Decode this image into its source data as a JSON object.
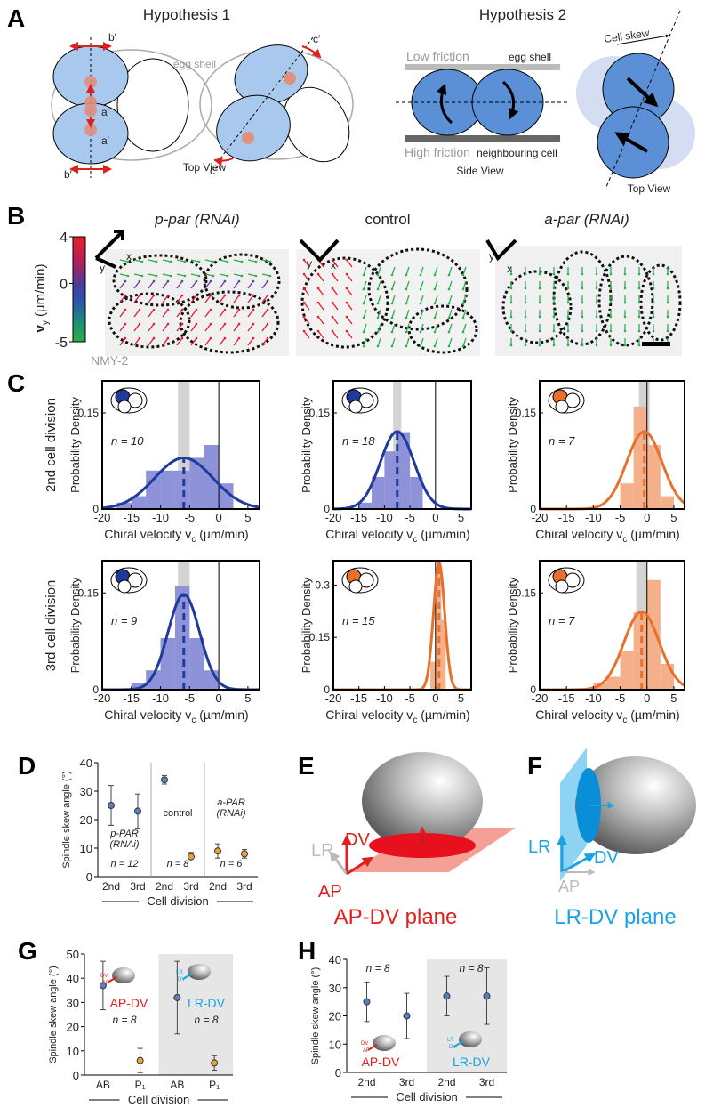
{
  "panel_a": {
    "letter": "A",
    "h1_title": "Hypothesis 1",
    "h1_labels": {
      "b_top": "b′",
      "a_top": "a′",
      "a_bottom": "a′",
      "b_bottom": "b′",
      "egg_shell": "egg shell",
      "c_top": "c′",
      "c_bottom": "c′"
    },
    "h1_view": "Top View",
    "h2_title": "Hypothesis 2",
    "h2_labels": {
      "low": "Low friction",
      "egg_shell": "egg shell",
      "high": "High friction",
      "neighbour": "neighbouring cell",
      "side_view": "Side View",
      "cell_skew": "Cell skew",
      "top_view": "Top View"
    }
  },
  "panel_b": {
    "letter": "B",
    "colorbar": {
      "ticks": [
        4,
        0,
        -5
      ],
      "lim": [
        -5,
        4
      ],
      "label": "v",
      "label_sub": "y",
      "unit": " (µm/min)"
    },
    "stain": "NMY-2",
    "titles": [
      "p-par (RNAi)",
      "control",
      "a-par (RNAi)"
    ],
    "axis_labels": [
      "y",
      "x"
    ]
  },
  "panel_c": {
    "letter": "C",
    "row_labels": [
      "2nd cell division",
      "3rd cell division"
    ],
    "charts": [
      {
        "type": "histogram",
        "ylabel": "Probability Density",
        "xlabel": "Chiral velocity  v",
        "xlabel_sub": "c",
        "xlabel_unit": " (µm/min)",
        "n_label": "n = 10",
        "color": "#1f3a9a",
        "bar_color": "#8e92d9",
        "xlim": [
          -20,
          7
        ],
        "xticks": [
          -20,
          -15,
          -10,
          -5,
          0,
          5
        ],
        "ylim": [
          0,
          0.2
        ],
        "yticks": [
          0,
          0.15
        ],
        "bins": [
          -17.5,
          -15,
          -12.5,
          -10,
          -7.5,
          -5,
          -2.5,
          0,
          2.5
        ],
        "counts": [
          0.01,
          0.02,
          0.06,
          0.06,
          0.06,
          0.08,
          0.1,
          0.04
        ],
        "fit_mean": -6,
        "fit_sd": 5,
        "mean_band": [
          -7,
          -5
        ],
        "reference_x": 0
      },
      {
        "type": "histogram",
        "ylabel": "Probability Density",
        "xlabel": "Chiral velocity  v",
        "xlabel_sub": "c",
        "xlabel_unit": " (µm/min)",
        "n_label": "n = 18",
        "color": "#1f3a9a",
        "bar_color": "#8e92d9",
        "xlim": [
          -20,
          7
        ],
        "xticks": [
          -20,
          -15,
          -10,
          -5,
          0,
          5
        ],
        "ylim": [
          0,
          0.2
        ],
        "yticks": [
          0,
          0.15
        ],
        "bins": [
          -15,
          -12.5,
          -10,
          -7.5,
          -5,
          -2.5
        ],
        "counts": [
          0.01,
          0.05,
          0.09,
          0.12,
          0.05
        ],
        "fit_mean": -7.5,
        "fit_sd": 3.3,
        "mean_band": [
          -8.3,
          -6.7
        ],
        "reference_x": 0
      },
      {
        "type": "histogram",
        "ylabel": "Probability Density",
        "xlabel": "Chiral velocity  v",
        "xlabel_sub": "c",
        "xlabel_unit": " (µm/min)",
        "n_label": "n = 7",
        "color": "#e8702a",
        "bar_color": "#f4b08a",
        "xlim": [
          -20,
          7
        ],
        "xticks": [
          -20,
          -15,
          -10,
          -5,
          0,
          5
        ],
        "ylim": [
          0,
          0.2
        ],
        "yticks": [
          0,
          0.15
        ],
        "bins": [
          -5,
          -2.5,
          0,
          2.5,
          5
        ],
        "counts": [
          0.04,
          0.16,
          0.1,
          0.02
        ],
        "fit_mean": -0.5,
        "fit_sd": 3.3,
        "mean_band": [
          -1.5,
          0.5
        ],
        "reference_x": 0
      },
      {
        "type": "histogram",
        "ylabel": "Probability Density",
        "xlabel": "Chiral velocity  v",
        "xlabel_sub": "c",
        "xlabel_unit": " (µm/min)",
        "n_label": "n = 9",
        "color": "#1f3a9a",
        "bar_color": "#8e92d9",
        "xlim": [
          -20,
          7
        ],
        "xticks": [
          -20,
          -15,
          -10,
          -5,
          0,
          5
        ],
        "ylim": [
          0,
          0.2
        ],
        "yticks": [
          0,
          0.15
        ],
        "bins": [
          -15,
          -12.5,
          -10,
          -7.5,
          -5,
          -2.5,
          0
        ],
        "counts": [
          0.01,
          0.03,
          0.08,
          0.16,
          0.08,
          0.03
        ],
        "fit_mean": -6,
        "fit_sd": 2.7,
        "mean_band": [
          -7,
          -5
        ],
        "reference_x": 0
      },
      {
        "type": "histogram",
        "ylabel": "Probability Density",
        "xlabel": "Chiral velocity  v",
        "xlabel_sub": "c",
        "xlabel_unit": " (µm/min)",
        "n_label": "n = 15",
        "color": "#e8702a",
        "bar_color": "#f4b08a",
        "xlim": [
          -20,
          7
        ],
        "xticks": [
          -20,
          -15,
          -10,
          -5,
          0,
          5
        ],
        "ylim": [
          0,
          0.37
        ],
        "yticks": [
          0,
          0.15,
          0.3
        ],
        "bins": [
          -1,
          0,
          1,
          2
        ],
        "counts": [
          0.08,
          0.33,
          0.2
        ],
        "fit_mean": 0.7,
        "fit_sd": 1.1,
        "mean_band": [
          0.2,
          1.2
        ],
        "reference_x": 0
      },
      {
        "type": "histogram",
        "ylabel": "Probability Density",
        "xlabel": "Chiral velocity  v",
        "xlabel_sub": "c",
        "xlabel_unit": " (µm/min)",
        "n_label": "n = 7",
        "color": "#e8702a",
        "bar_color": "#f4b08a",
        "xlim": [
          -20,
          7
        ],
        "xticks": [
          -20,
          -15,
          -10,
          -5,
          0,
          5
        ],
        "ylim": [
          0,
          0.2
        ],
        "yticks": [
          0,
          0.15
        ],
        "bins": [
          -10,
          -7.5,
          -5,
          -2.5,
          0,
          2.5,
          5
        ],
        "counts": [
          0.01,
          0.02,
          0.06,
          0.12,
          0.17,
          0.04
        ],
        "fit_mean": -1,
        "fit_sd": 3.3,
        "mean_band": [
          -2,
          0
        ],
        "reference_x": 0
      }
    ]
  },
  "panel_d": {
    "letter": "D",
    "type": "errorbar",
    "ylabel": "Spindle skew angle (°)",
    "ylim": [
      0,
      40
    ],
    "yticks": [
      0,
      10,
      20,
      30,
      40
    ],
    "categories": [
      "2nd",
      "3rd",
      "2nd",
      "3rd",
      "2nd",
      "3rd"
    ],
    "values": [
      25,
      23,
      34,
      7,
      9,
      8
    ],
    "errors": [
      7,
      6,
      1.5,
      1.5,
      2.5,
      1.5
    ],
    "colors": [
      "#5b7fc4",
      "#5b7fc4",
      "#5b7fc4",
      "#e8a33c",
      "#e8a33c",
      "#e8a33c"
    ],
    "group_labels": [
      [
        "p-PAR",
        "(RNAi)"
      ],
      [
        "control"
      ],
      [
        "a-PAR",
        "(RNAi)"
      ]
    ],
    "n_labels": [
      "n = 12",
      "n = 8",
      "n = 6"
    ],
    "xlabel": "Cell division"
  },
  "panel_e": {
    "letter": "E",
    "axes": [
      "DV",
      "LR",
      "AP"
    ],
    "plane": "AP-DV plane"
  },
  "panel_f": {
    "letter": "F",
    "axes": [
      "LR",
      "DV",
      "AP"
    ],
    "plane": "LR-DV plane"
  },
  "panel_g": {
    "letter": "G",
    "type": "errorbar",
    "ylabel": "Spindle skew angle (°)",
    "ylim": [
      0,
      50
    ],
    "yticks": [
      0,
      10,
      20,
      30,
      40,
      50
    ],
    "categories": [
      "AB",
      "P₁",
      "AB",
      "P₁"
    ],
    "values": [
      37,
      6,
      32,
      5
    ],
    "errors": [
      10,
      5,
      15,
      3
    ],
    "colors": [
      "#5b7fc4",
      "#e8a33c",
      "#5b7fc4",
      "#e8a33c"
    ],
    "plane_labels": [
      "AP-DV",
      "LR-DV"
    ],
    "icon_labels": [
      [
        "DV",
        "AP"
      ],
      [
        "LR",
        "DV"
      ]
    ],
    "n_labels": [
      "n = 8",
      "n = 8"
    ],
    "xlabel": "Cell division"
  },
  "panel_h": {
    "letter": "H",
    "type": "errorbar",
    "ylabel": "Spindle skew angle (°)",
    "ylim": [
      0,
      40
    ],
    "yticks": [
      0,
      10,
      20,
      30,
      40
    ],
    "categories": [
      "2nd",
      "3rd",
      "2nd",
      "3rd"
    ],
    "values": [
      25,
      20,
      27,
      27
    ],
    "errors": [
      7,
      8,
      7,
      10
    ],
    "colors": [
      "#5b7fc4",
      "#5b7fc4",
      "#5b7fc4",
      "#5b7fc4"
    ],
    "plane_labels": [
      "AP-DV",
      "LR-DV"
    ],
    "icon_labels": [
      [
        "DV",
        "AP"
      ],
      [
        "LR",
        "DV"
      ]
    ],
    "n_labels": [
      "n = 8",
      "n = 8"
    ],
    "xlabel": "Cell division"
  }
}
